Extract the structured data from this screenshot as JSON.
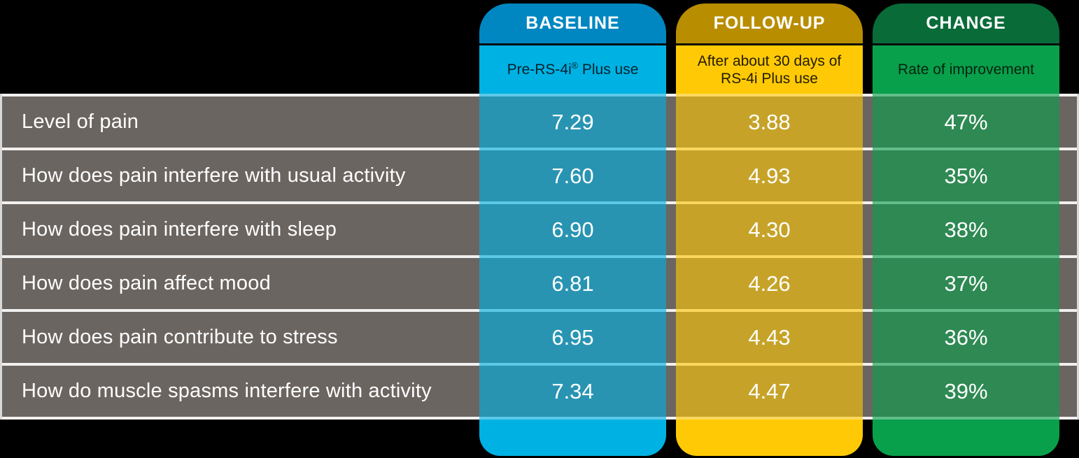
{
  "background_color": "#000000",
  "chart_data": {
    "type": "table",
    "row_label_column": {
      "bg": "#6b6561",
      "text_color": "#ffffff"
    },
    "separator_color": "#f2f0ef",
    "column_overlay_alpha": 0.62,
    "columns": [
      {
        "id": "baseline",
        "header": "BASELINE",
        "subheader": "Pre-RS-4i® Plus use",
        "subheader_lines": [
          "Pre-RS-4i® Plus use"
        ],
        "header_bg": "#0087c1",
        "body_bg": "#00b2e3",
        "cell_bg": "#2b9ab5",
        "header_text_color": "#ffffff",
        "subheader_text_color": "#00222e"
      },
      {
        "id": "followup",
        "header": "FOLLOW-UP",
        "subheader": "After about 30 days of RS-4i Plus use",
        "subheader_lines": [
          "After about 30 days of",
          "RS-4i Plus use"
        ],
        "header_bg": "#b98d00",
        "body_bg": "#ffca05",
        "cell_bg": "#cfad27",
        "header_text_color": "#ffffff",
        "subheader_text_color": "#241b00"
      },
      {
        "id": "change",
        "header": "CHANGE",
        "subheader": "Rate of improvement",
        "subheader_lines": [
          "Rate of improvement"
        ],
        "header_bg": "#086b38",
        "body_bg": "#09a04b",
        "cell_bg": "#2e9150",
        "header_text_color": "#ffffff",
        "subheader_text_color": "#00230f"
      }
    ],
    "rows": [
      {
        "label": "Level of pain",
        "baseline": "7.29",
        "followup": "3.88",
        "change": "47%"
      },
      {
        "label": "How does pain interfere with usual activity",
        "baseline": "7.60",
        "followup": "4.93",
        "change": "35%"
      },
      {
        "label": "How does pain interfere with sleep",
        "baseline": "6.90",
        "followup": "4.30",
        "change": "38%"
      },
      {
        "label": "How does pain affect mood",
        "baseline": "6.81",
        "followup": "4.26",
        "change": "37%"
      },
      {
        "label": "How does pain contribute to stress",
        "baseline": "6.95",
        "followup": "4.43",
        "change": "36%"
      },
      {
        "label": "How do muscle spasms interfere with activity",
        "baseline": "7.34",
        "followup": "4.47",
        "change": "39%"
      }
    ]
  }
}
